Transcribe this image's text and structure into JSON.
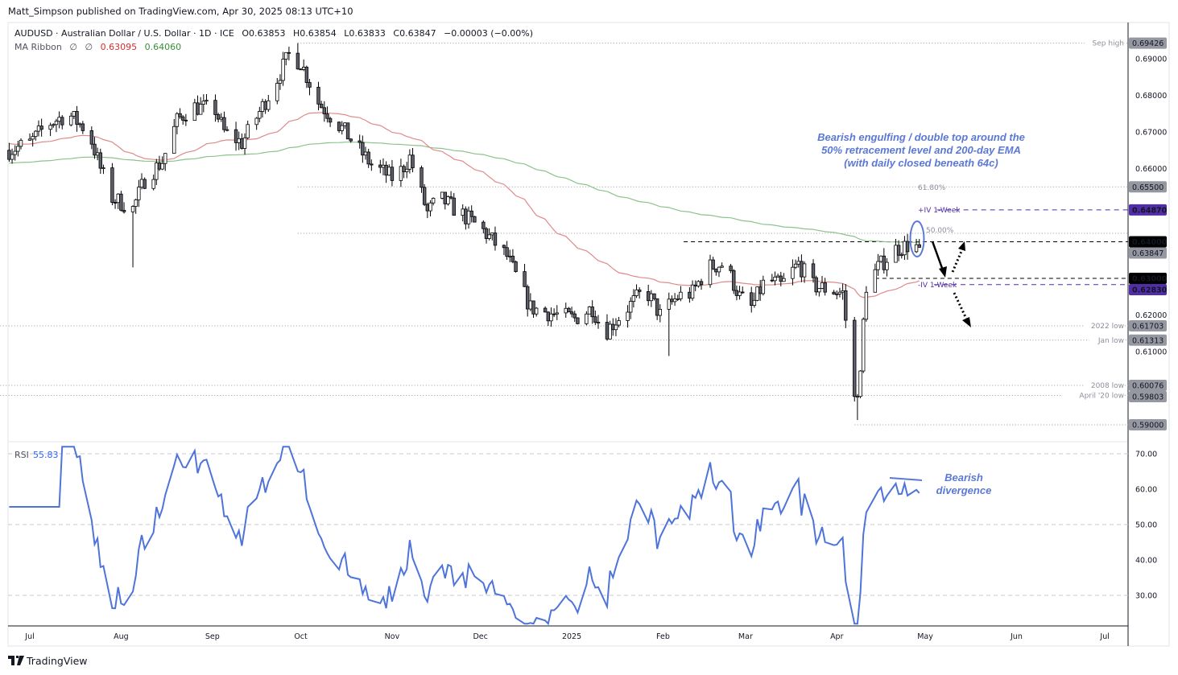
{
  "publisher_line": "Matt_Simpson published on TradingView.com, Apr 30, 2025 08:13 UTC+10",
  "legend": {
    "symbol_line": "AUDUSD · Australian Dollar / U.S. Dollar · 1D · ICE",
    "open": "O0.63853",
    "high": "H0.63854",
    "low": "L0.63833",
    "close": "C0.63847",
    "change": "−0.00003 (−0.00%)",
    "ma_label": "MA Ribbon",
    "ma_sym1": "∅",
    "ma_sym2": "∅",
    "ma_fast": "0.63095",
    "ma_slow": "0.64060"
  },
  "colors": {
    "ma_fast": "#e08a8a",
    "ma_slow": "#8cc28c",
    "rsi": "#4f74d9",
    "annotation": "#5b78d6",
    "iv": "#512da8",
    "label_gray": "#9598a1"
  },
  "annotations": {
    "engulfing": [
      "Bearish engulfing / double top around the",
      "50% retracement level and 200-day EMA",
      "(with daily closed  beneath 64c)"
    ],
    "divergence": [
      "Bearish",
      "divergence"
    ],
    "fib618": "61.80%",
    "fib50": "50.00%",
    "iv_plus": "+IV 1-Week",
    "iv_minus": "-IV 1-Week"
  },
  "chart_data": {
    "type": "candlestick",
    "symbol": "AUDUSD",
    "interval": "1D",
    "price_ticks": [
      "0.69000",
      "0.68000",
      "0.67000",
      "0.66000",
      "0.62000",
      "0.61000"
    ],
    "price_range": [
      0.586,
      0.6985
    ],
    "close_path": [
      [
        "2024-06-24",
        0.665
      ],
      [
        "2024-07-01",
        0.667
      ],
      [
        "2024-07-07",
        0.672
      ],
      [
        "2024-07-14",
        0.675
      ],
      [
        "2024-07-21",
        0.67
      ],
      [
        "2024-07-25",
        0.66
      ],
      [
        "2024-07-29",
        0.652
      ],
      [
        "2024-08-05",
        0.649
      ],
      [
        "2024-08-09",
        0.657
      ],
      [
        "2024-08-15",
        0.662
      ],
      [
        "2024-08-20",
        0.673
      ],
      [
        "2024-08-25",
        0.677
      ],
      [
        "2024-09-02",
        0.676
      ],
      [
        "2024-09-05",
        0.67
      ],
      [
        "2024-09-11",
        0.667
      ],
      [
        "2024-09-16",
        0.674
      ],
      [
        "2024-09-22",
        0.683
      ],
      [
        "2024-09-27",
        0.691
      ],
      [
        "2024-10-01",
        0.689
      ],
      [
        "2024-10-07",
        0.678
      ],
      [
        "2024-10-14",
        0.672
      ],
      [
        "2024-10-19",
        0.667
      ],
      [
        "2024-10-25",
        0.661
      ],
      [
        "2024-11-02",
        0.657
      ],
      [
        "2024-11-07",
        0.663
      ],
      [
        "2024-11-13",
        0.648
      ],
      [
        "2024-11-17",
        0.652
      ],
      [
        "2024-11-24",
        0.648
      ],
      [
        "2024-12-02",
        0.643
      ],
      [
        "2024-12-10",
        0.636
      ],
      [
        "2024-12-18",
        0.622
      ],
      [
        "2024-12-27",
        0.62
      ],
      [
        "2025-01-02",
        0.619
      ],
      [
        "2025-01-08",
        0.622
      ],
      [
        "2025-01-12",
        0.615
      ],
      [
        "2025-01-20",
        0.622
      ],
      [
        "2025-01-26",
        0.627
      ],
      [
        "2025-01-31",
        0.62
      ],
      [
        "2025-02-06",
        0.625
      ],
      [
        "2025-02-11",
        0.626
      ],
      [
        "2025-02-16",
        0.633
      ],
      [
        "2025-02-22",
        0.634
      ],
      [
        "2025-02-27",
        0.625
      ],
      [
        "2025-03-03",
        0.622
      ],
      [
        "2025-03-08",
        0.63
      ],
      [
        "2025-03-13",
        0.628
      ],
      [
        "2025-03-19",
        0.634
      ],
      [
        "2025-03-24",
        0.628
      ],
      [
        "2025-03-29",
        0.627
      ],
      [
        "2025-04-03",
        0.626
      ],
      [
        "2025-04-07",
        0.597
      ],
      [
        "2025-04-09",
        0.603
      ],
      [
        "2025-04-10",
        0.618
      ],
      [
        "2025-04-11",
        0.628
      ],
      [
        "2025-04-15",
        0.633
      ],
      [
        "2025-04-21",
        0.638
      ],
      [
        "2025-04-25",
        0.639
      ],
      [
        "2025-04-29",
        0.63847
      ]
    ],
    "notable_wicks": [
      [
        "2024-08-05",
        0.633
      ],
      [
        "2025-02-03",
        0.6088
      ],
      [
        "2025-04-08",
        0.5913
      ],
      [
        "2024-09-30",
        0.69426
      ]
    ],
    "ma_ribbon": {
      "fast_last": 0.63095,
      "slow_last": 0.6406
    },
    "levels": [
      {
        "name": "Sep high",
        "price": 0.69426,
        "label": "0.69426",
        "style": "dotted",
        "from": "2024-09-30",
        "box": "gray"
      },
      {
        "name": "61.80%",
        "price": 0.655,
        "label": "0.65500",
        "style": "dotted",
        "from": "2024-09-30",
        "box": "gray"
      },
      {
        "name": "+IV 1-Week",
        "price": 0.6487,
        "label": "0.64870",
        "style": "iv",
        "from": "2025-05-05",
        "box": "purple"
      },
      {
        "name": "50.00%",
        "price": 0.6423,
        "label": "",
        "style": "dotted",
        "from": "2024-09-30",
        "box": ""
      },
      {
        "name": "",
        "price": 0.64,
        "label": "0.64000",
        "style": "dashed",
        "from": "2025-02-08",
        "box": "black"
      },
      {
        "name": "",
        "price": 0.63847,
        "label": "0.63847",
        "style": "none",
        "from": "",
        "box": "gray"
      },
      {
        "name": "",
        "price": 0.63,
        "label": "0.63000",
        "style": "dashed",
        "from": "2025-04-14",
        "box": "black"
      },
      {
        "name": "-IV 1-Week",
        "price": 0.6283,
        "label": "0.62830",
        "style": "iv",
        "from": "2025-05-04",
        "box": "purple"
      },
      {
        "name": "2022 low",
        "price": 0.61703,
        "label": "0.61703",
        "style": "dotted",
        "from": "2024-06-20",
        "box": "gray"
      },
      {
        "name": "Jan low",
        "price": 0.61313,
        "label": "0.61313",
        "style": "dotted",
        "from": "2025-01-13",
        "box": "gray"
      },
      {
        "name": "2008 low",
        "price": 0.60076,
        "label": "0.60076",
        "style": "dotted",
        "from": "2024-06-20",
        "box": "gray"
      },
      {
        "name": "April '20 low",
        "price": 0.59803,
        "label": "0.59803",
        "style": "dotted",
        "from": "2024-06-20",
        "box": "gray"
      },
      {
        "name": "",
        "price": 0.59,
        "label": "0.59000",
        "style": "dotted",
        "from": "2025-04-07",
        "box": "gray"
      }
    ],
    "x_ticks": [
      [
        "Jul",
        "2024-07-01"
      ],
      [
        "Aug",
        "2024-08-01"
      ],
      [
        "Sep",
        "2024-09-01"
      ],
      [
        "Oct",
        "2024-10-01"
      ],
      [
        "Nov",
        "2024-11-01"
      ],
      [
        "Dec",
        "2024-12-01"
      ],
      [
        "2025",
        "2025-01-01"
      ],
      [
        "Feb",
        "2025-02-01"
      ],
      [
        "Mar",
        "2025-03-01"
      ],
      [
        "Apr",
        "2025-04-01"
      ],
      [
        "May",
        "2025-05-01"
      ],
      [
        "Jun",
        "2025-06-01"
      ],
      [
        "Jul",
        "2025-07-01"
      ]
    ],
    "rsi": {
      "label": "RSI",
      "value": "55.83",
      "period": 14,
      "ticks": [
        "70.00",
        "60.00",
        "50.00",
        "40.00",
        "30.00"
      ],
      "levels": [
        70,
        50,
        30
      ],
      "range": [
        22,
        72
      ]
    }
  },
  "footer": {
    "brand": "TradingView"
  }
}
